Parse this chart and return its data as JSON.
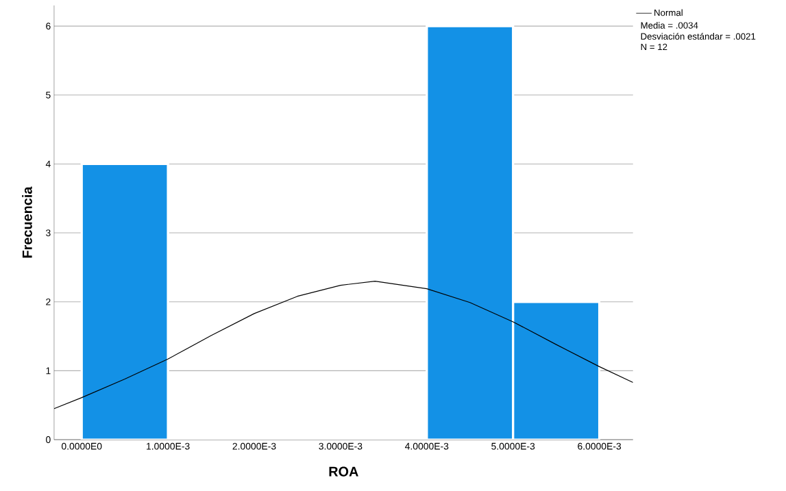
{
  "chart_data": {
    "type": "histogram",
    "xlabel": "ROA",
    "ylabel": "Frecuencia",
    "bins": [
      0,
      0.001,
      0.002,
      0.003,
      0.004,
      0.005,
      0.006
    ],
    "values": [
      4,
      0,
      0,
      0,
      6,
      2
    ],
    "color": "#1391e6",
    "series": [
      {
        "type": "line",
        "name": "Normal",
        "color": "#000000",
        "x": [
          -0.00032,
          0,
          0.0005,
          0.001,
          0.0015,
          0.002,
          0.0025,
          0.003,
          0.0034,
          0.004,
          0.0045,
          0.005,
          0.0055,
          0.006,
          0.00639
        ],
        "values": [
          0.45,
          0.61,
          0.88,
          1.17,
          1.51,
          1.83,
          2.08,
          2.24,
          2.3,
          2.19,
          1.99,
          1.71,
          1.38,
          1.06,
          0.83
        ]
      }
    ],
    "xlim": [
      -0.00032,
      0.00639
    ],
    "ylim": [
      0,
      6.3
    ],
    "xticks": [
      {
        "value": 0,
        "label": "0.0000E0"
      },
      {
        "value": 0.001,
        "label": "1.0000E-3"
      },
      {
        "value": 0.002,
        "label": "2.0000E-3"
      },
      {
        "value": 0.003,
        "label": "3.0000E-3"
      },
      {
        "value": 0.004,
        "label": "4.0000E-3"
      },
      {
        "value": 0.005,
        "label": "5.0000E-3"
      },
      {
        "value": 0.006,
        "label": "6.0000E-3"
      }
    ],
    "yticks": [
      0,
      1,
      2,
      3,
      4,
      5,
      6
    ],
    "grid": "y",
    "legend": "top right",
    "annotations": [
      "Media = .0034",
      "Desviación estándar = .0021",
      "N = 12"
    ]
  }
}
